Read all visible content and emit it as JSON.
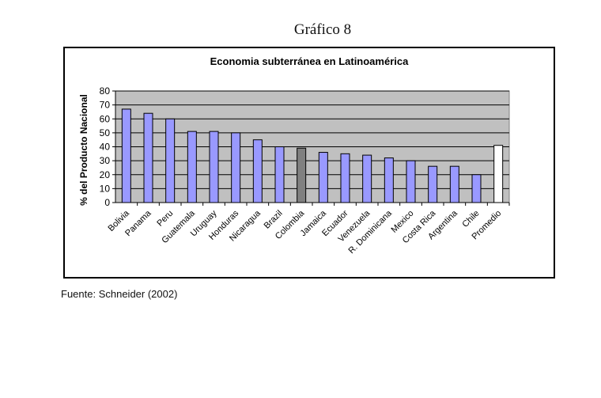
{
  "page": {
    "heading": "Gráfico 8",
    "source": "Fuente: Schneider (2002)"
  },
  "colors": {
    "plot_background": "#c0c0c0",
    "bar_default": "#9999ff",
    "bar_highlight": "#808080",
    "bar_average": "#ffffff",
    "gridline": "#000000"
  },
  "chart_data": {
    "type": "bar",
    "title": "Economia subterránea en Latinoamérica",
    "xlabel": "",
    "ylabel": "% del Producto Nacional",
    "ylim": [
      0,
      80
    ],
    "yticks": [
      0,
      10,
      20,
      30,
      40,
      50,
      60,
      70,
      80
    ],
    "grid": true,
    "categories": [
      "Bolivia",
      "Panama",
      "Peru",
      "Guatemala",
      "Uruguay",
      "Honduras",
      "Nicaragua",
      "Brazil",
      "Colombia",
      "Jamaica",
      "Ecuador",
      "Venezuela",
      "R. Dominicana",
      "Mexico",
      "Costa Rica",
      "Argentina",
      "Chile",
      "Promedio"
    ],
    "values": [
      67,
      64,
      60,
      51,
      51,
      50,
      45,
      40,
      39,
      36,
      35,
      34,
      32,
      30,
      26,
      26,
      20,
      41
    ],
    "highlight": {
      "Colombia": "bar_highlight",
      "Promedio": "bar_average"
    }
  }
}
